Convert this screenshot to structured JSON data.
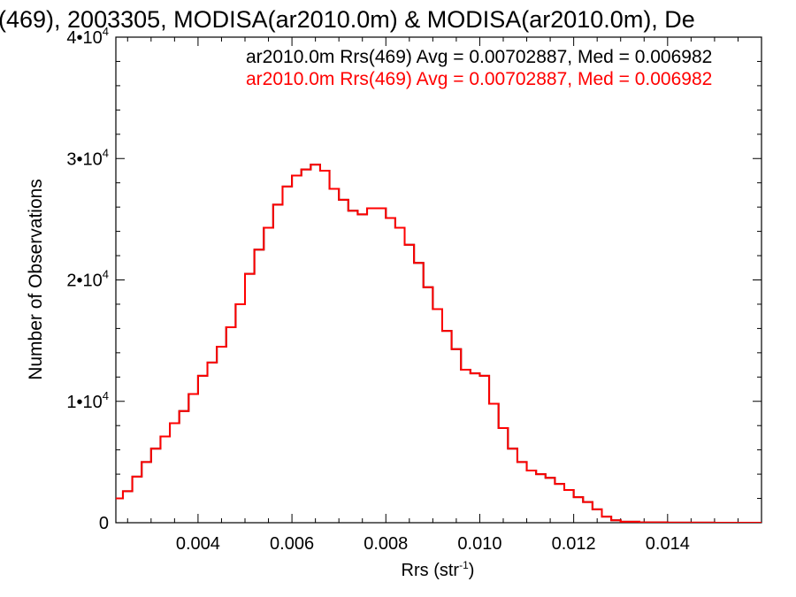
{
  "chart_data": {
    "type": "histogram",
    "title": "(469), 2003305, MODISA(ar2010.0m) & MODISA(ar2010.0m), De",
    "xlabel": "Rrs (str",
    "xlabel_sup": "-1",
    "xlabel_close": ")",
    "ylabel": "Number of Observations",
    "xlim": [
      0.00225,
      0.016
    ],
    "ylim": [
      0,
      40000
    ],
    "x_ticks": [
      {
        "value": 0.004,
        "label": "0.004"
      },
      {
        "value": 0.006,
        "label": "0.006"
      },
      {
        "value": 0.008,
        "label": "0.008"
      },
      {
        "value": 0.01,
        "label": "0.010"
      },
      {
        "value": 0.012,
        "label": "0.012"
      },
      {
        "value": 0.014,
        "label": "0.014"
      }
    ],
    "y_ticks": [
      {
        "value": 0,
        "label": "0",
        "sup": ""
      },
      {
        "value": 10000,
        "label": "1•10",
        "sup": "4"
      },
      {
        "value": 20000,
        "label": "2•10",
        "sup": "4"
      },
      {
        "value": 30000,
        "label": "3•10",
        "sup": "4"
      },
      {
        "value": 40000,
        "label": "4•10",
        "sup": "4"
      }
    ],
    "legend_placement": "top-right",
    "series": [
      {
        "name": "ar2010.0m Rrs(469) Avg = 0.00702887, Med = 0.006982",
        "color": "#000000",
        "points": [
          [
            0.00225,
            2000
          ],
          [
            0.0024,
            2600
          ],
          [
            0.0026,
            3800
          ],
          [
            0.0028,
            5000
          ],
          [
            0.003,
            6100
          ],
          [
            0.0032,
            7100
          ],
          [
            0.0034,
            8200
          ],
          [
            0.0036,
            9200
          ],
          [
            0.0038,
            10600
          ],
          [
            0.004,
            12100
          ],
          [
            0.0042,
            13200
          ],
          [
            0.0044,
            14500
          ],
          [
            0.0046,
            16100
          ],
          [
            0.0048,
            18000
          ],
          [
            0.005,
            20500
          ],
          [
            0.0052,
            22500
          ],
          [
            0.0054,
            24300
          ],
          [
            0.0056,
            26200
          ],
          [
            0.0058,
            27700
          ],
          [
            0.006,
            28600
          ],
          [
            0.0062,
            29100
          ],
          [
            0.0064,
            29500
          ],
          [
            0.0066,
            29000
          ],
          [
            0.0068,
            27500
          ],
          [
            0.007,
            26600
          ],
          [
            0.0072,
            25700
          ],
          [
            0.0074,
            25400
          ],
          [
            0.0076,
            25900
          ],
          [
            0.0078,
            25900
          ],
          [
            0.008,
            25100
          ],
          [
            0.0082,
            24300
          ],
          [
            0.0084,
            22900
          ],
          [
            0.0086,
            21400
          ],
          [
            0.0088,
            19400
          ],
          [
            0.009,
            17600
          ],
          [
            0.0092,
            15800
          ],
          [
            0.0094,
            14300
          ],
          [
            0.0096,
            12600
          ],
          [
            0.0098,
            12300
          ],
          [
            0.01,
            12100
          ],
          [
            0.0102,
            9800
          ],
          [
            0.0104,
            7800
          ],
          [
            0.0106,
            6100
          ],
          [
            0.0108,
            5000
          ],
          [
            0.011,
            4300
          ],
          [
            0.0112,
            4000
          ],
          [
            0.0114,
            3700
          ],
          [
            0.0116,
            3200
          ],
          [
            0.0118,
            2700
          ],
          [
            0.012,
            2100
          ],
          [
            0.0122,
            1700
          ],
          [
            0.0124,
            1100
          ],
          [
            0.0126,
            500
          ],
          [
            0.0128,
            200
          ],
          [
            0.013,
            80
          ],
          [
            0.0134,
            30
          ],
          [
            0.014,
            10
          ],
          [
            0.015,
            0
          ],
          [
            0.016,
            0
          ]
        ]
      },
      {
        "name": "ar2010.0m Rrs(469) Avg = 0.00702887, Med = 0.006982",
        "color": "#ff0000",
        "same_as_series": 0
      }
    ]
  }
}
